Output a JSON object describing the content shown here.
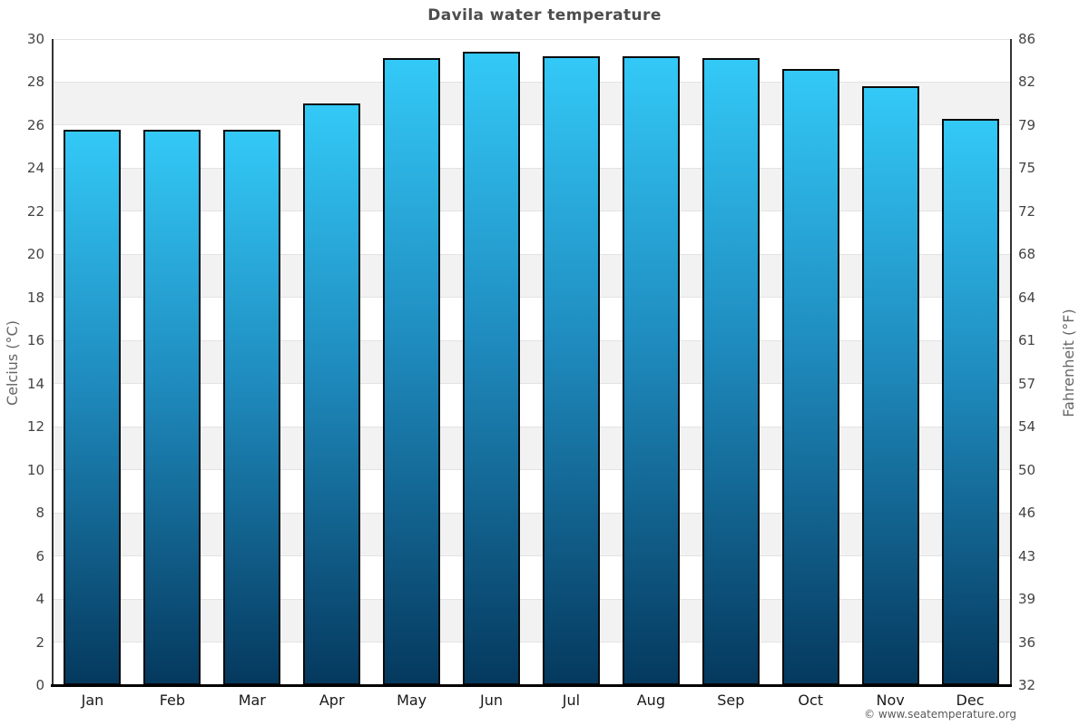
{
  "title": "Davila water temperature",
  "watermark": "© www.seatemperature.org",
  "axes": {
    "left_label": "Celcius (°C)",
    "right_label": "Fahrenheit (°F)"
  },
  "chart_data": {
    "type": "bar",
    "title": "Davila water temperature",
    "categories": [
      "Jan",
      "Feb",
      "Mar",
      "Apr",
      "May",
      "Jun",
      "Jul",
      "Aug",
      "Sep",
      "Oct",
      "Nov",
      "Dec"
    ],
    "series": [
      {
        "name": "Water temperature (°C)",
        "values": [
          25.8,
          25.8,
          25.8,
          27.0,
          29.1,
          29.4,
          29.2,
          29.2,
          29.1,
          28.6,
          27.8,
          26.3
        ]
      }
    ],
    "xlabel": "",
    "ylabel_left": "Celcius (°C)",
    "ylabel_right": "Fahrenheit (°F)",
    "ylim": [
      0,
      30
    ],
    "yticks_left": [
      0,
      2,
      4,
      6,
      8,
      10,
      12,
      14,
      16,
      18,
      20,
      22,
      24,
      26,
      28,
      30
    ],
    "yticks_right": [
      32,
      36,
      39,
      43,
      46,
      50,
      54,
      57,
      61,
      64,
      68,
      72,
      75,
      79,
      82,
      86
    ],
    "legend": "none",
    "grid": "alternating horizontal bands every 2°C",
    "colors": {
      "bar_gradient_top": "#33c9f7",
      "bar_gradient_mid": "#1f8cbf",
      "bar_gradient_bottom": "#05395e",
      "bar_border": "#0a0a0a",
      "band_gray": "#f2f2f2",
      "title_text": "#4d4d4d",
      "axis_text": "#666666"
    }
  }
}
